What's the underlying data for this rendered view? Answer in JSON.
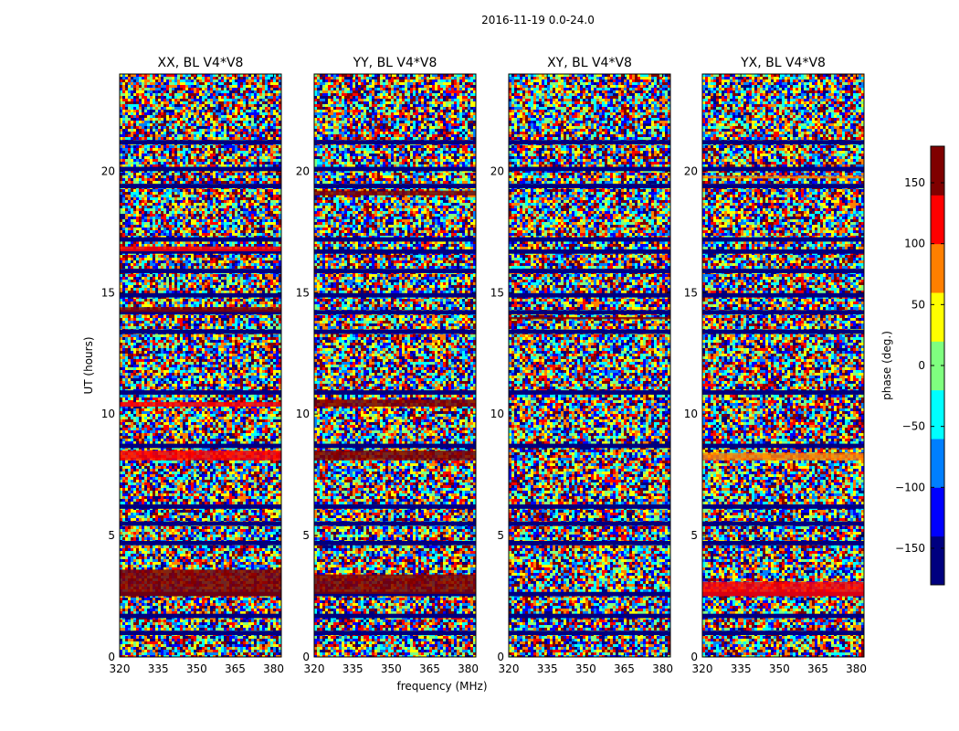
{
  "figure_title": "2016-11-19 0.0-24.0",
  "colormap": [
    "#00007f",
    "#0000ff",
    "#007fff",
    "#00ffff",
    "#7fff7f",
    "#ffff00",
    "#ff7f00",
    "#ff0000",
    "#7f0000"
  ],
  "chart_data": {
    "type": "heatmap",
    "title": "2016-11-19 0.0-24.0",
    "xlabel": "frequency (MHz)",
    "ylabel": "UT (hours)",
    "xlim": [
      320,
      383
    ],
    "ylim": [
      0,
      24
    ],
    "xticks": [
      320,
      335,
      350,
      365,
      380
    ],
    "yticks": [
      0,
      5,
      10,
      15,
      20
    ],
    "value_range": [
      -180,
      180
    ],
    "flagged_hours": [
      0.9,
      1.6,
      2.5,
      4.6,
      5.4,
      6.1,
      8.6,
      10.8,
      13.3,
      14.1,
      14.8,
      15.8,
      16.6,
      17.1,
      19.3,
      20.0,
      21.1
    ],
    "panels": [
      {
        "title": "XX, BL V4*V8",
        "bands": [
          {
            "from": 2.5,
            "to": 3.6,
            "phase": 150
          },
          {
            "from": 8.1,
            "to": 8.5,
            "phase": 110
          },
          {
            "from": 10.3,
            "to": 10.5,
            "phase": 130
          },
          {
            "from": 14.2,
            "to": 14.4,
            "phase": 140
          },
          {
            "from": 16.7,
            "to": 16.9,
            "phase": 120
          }
        ]
      },
      {
        "title": "YY, BL V4*V8",
        "bands": [
          {
            "from": 2.6,
            "to": 3.4,
            "phase": 160
          },
          {
            "from": 8.1,
            "to": 8.5,
            "phase": 170
          },
          {
            "from": 10.3,
            "to": 10.6,
            "phase": 170
          },
          {
            "from": 19.0,
            "to": 19.2,
            "phase": 170
          }
        ]
      },
      {
        "title": "XY, BL V4*V8",
        "bands": [
          {
            "from": 13.9,
            "to": 14.0,
            "phase": 150
          }
        ]
      },
      {
        "title": "YX, BL V4*V8",
        "bands": [
          {
            "from": 2.5,
            "to": 3.1,
            "phase": 110
          },
          {
            "from": 8.1,
            "to": 8.4,
            "phase": 80
          },
          {
            "from": 19.7,
            "to": 19.8,
            "phase": 90
          }
        ]
      }
    ],
    "colorbar": {
      "label": "phase (deg.)",
      "range": [
        -180,
        180
      ],
      "ticks": [
        -150,
        -100,
        -50,
        0,
        50,
        100,
        150
      ],
      "tick_labels": [
        "−150",
        "−100",
        "−50",
        "0",
        "50",
        "100",
        "150"
      ]
    }
  }
}
